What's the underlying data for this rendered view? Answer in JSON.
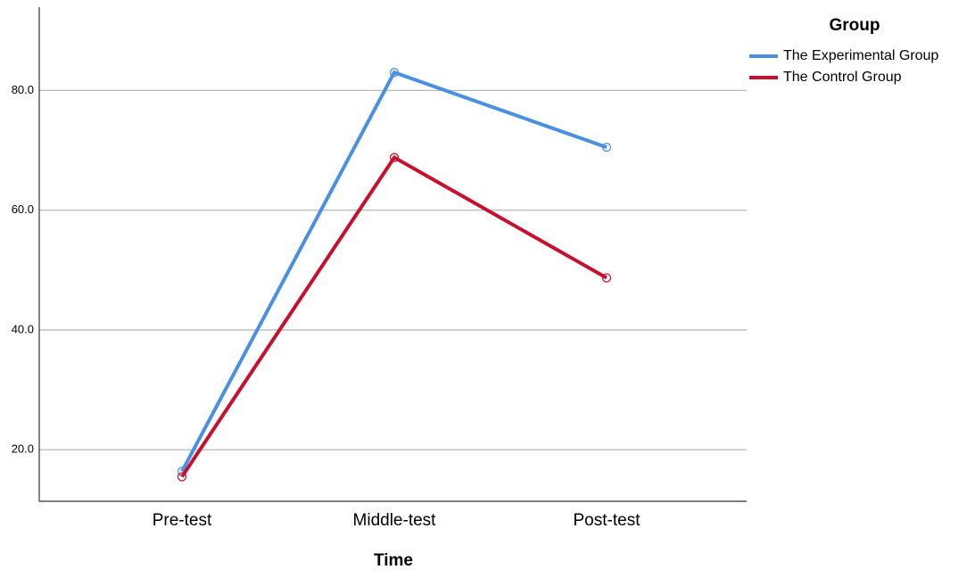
{
  "chart_data": {
    "type": "line",
    "x_label": "Time",
    "legend_title": "Group",
    "legend_position": "top-right",
    "categories": [
      "Pre-test",
      "Middle-test",
      "Post-test"
    ],
    "series": [
      {
        "name": "The Experimental Group",
        "color": "#4a90e2",
        "values": [
          16.4,
          83.0,
          70.5
        ]
      },
      {
        "name": "The Control Group",
        "color": "#c8102e",
        "values": [
          15.5,
          68.8,
          48.7
        ]
      }
    ],
    "ylim": [
      11.4,
      93.9
    ],
    "yticks": [
      {
        "value": 20,
        "label": "20.0"
      },
      {
        "value": 40,
        "label": "40.0"
      },
      {
        "value": 60,
        "label": "60.0"
      },
      {
        "value": 80,
        "label": "80.0"
      }
    ],
    "grid": true
  }
}
